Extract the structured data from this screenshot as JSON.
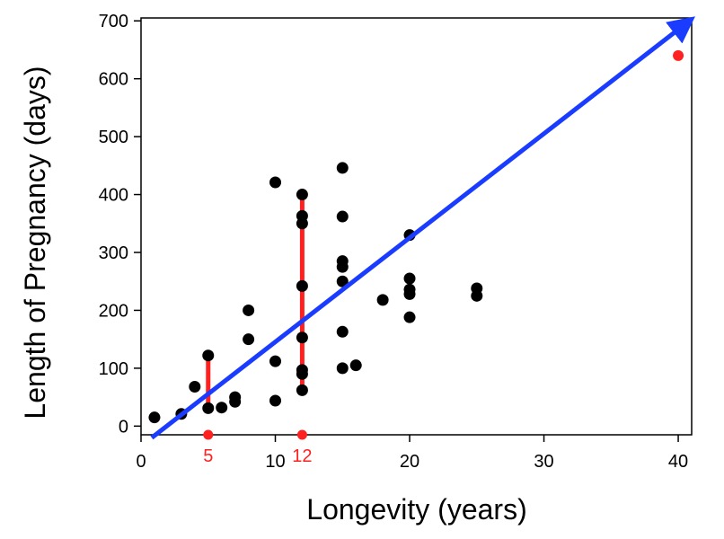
{
  "chart_data": {
    "type": "scatter",
    "title": "",
    "xlabel": "Longevity (years)",
    "ylabel": "Length of Pregnancy (days)",
    "xlim": [
      0,
      41
    ],
    "ylim": [
      -15,
      705
    ],
    "xticks": [
      0,
      10,
      20,
      30,
      40
    ],
    "yticks": [
      0,
      100,
      200,
      300,
      400,
      500,
      600,
      700
    ],
    "grid": false,
    "legend": "none",
    "points": [
      [
        1,
        15
      ],
      [
        3,
        21
      ],
      [
        4,
        68
      ],
      [
        5,
        31
      ],
      [
        5,
        122
      ],
      [
        6,
        32
      ],
      [
        7,
        42
      ],
      [
        7,
        50
      ],
      [
        8,
        150
      ],
      [
        8,
        200
      ],
      [
        10,
        44
      ],
      [
        10,
        112
      ],
      [
        10,
        421
      ],
      [
        12,
        62
      ],
      [
        12,
        90
      ],
      [
        12,
        97
      ],
      [
        12,
        153
      ],
      [
        12,
        242
      ],
      [
        12,
        350
      ],
      [
        12,
        363
      ],
      [
        12,
        400
      ],
      [
        15,
        100
      ],
      [
        15,
        163
      ],
      [
        15,
        250
      ],
      [
        15,
        275
      ],
      [
        15,
        285
      ],
      [
        15,
        362
      ],
      [
        15,
        446
      ],
      [
        16,
        105
      ],
      [
        18,
        218
      ],
      [
        20,
        188
      ],
      [
        20,
        228
      ],
      [
        20,
        236
      ],
      [
        20,
        255
      ],
      [
        20,
        330
      ],
      [
        25,
        225
      ],
      [
        25,
        238
      ]
    ],
    "highlight_point": [
      40,
      640
    ],
    "trend_arrow": {
      "from": [
        0.8,
        -20
      ],
      "to": [
        41,
        703
      ]
    },
    "range_bars": [
      {
        "x": 5,
        "y_min": 30,
        "y_max": 120,
        "label": "5"
      },
      {
        "x": 12,
        "y_min": 62,
        "y_max": 402,
        "label": "12"
      }
    ],
    "colors": {
      "points": "#000000",
      "trend": "#1a3cff",
      "highlight": "#ff2020"
    }
  }
}
